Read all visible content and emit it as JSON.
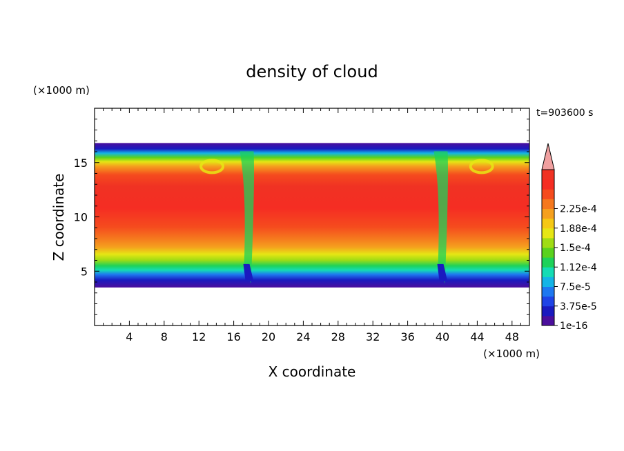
{
  "chart_data": {
    "type": "heatmap",
    "title": "density of cloud",
    "xlabel": "X coordinate",
    "ylabel": "Z coordinate",
    "x_unit": "(×1000 m)",
    "y_unit": "(×1000 m)",
    "time_label": "t=903600 s",
    "xlim": [
      0,
      50
    ],
    "ylim": [
      0,
      20
    ],
    "x_ticks": [
      4,
      8,
      12,
      16,
      20,
      24,
      28,
      32,
      36,
      40,
      44,
      48
    ],
    "y_ticks": [
      5,
      10,
      15
    ],
    "colorbar": {
      "labels": [
        "1e-16",
        "3.75e-5",
        "7.5e-5",
        "1.12e-4",
        "1.5e-4",
        "1.88e-4",
        "2.25e-4"
      ],
      "extend": "max",
      "colors": [
        "#4b0f9c",
        "#1a1abf",
        "#1f44e6",
        "#1e78f0",
        "#14b4e6",
        "#14dcb4",
        "#1ed25a",
        "#5ad21e",
        "#a0dc14",
        "#e6e614",
        "#f5c814",
        "#f5a01e",
        "#f5781e",
        "#f54b1e",
        "#f52d23",
        "#f03223"
      ],
      "over_color": "#f0a0a0"
    },
    "cloud_layer": {
      "base_z": 3.5,
      "top_z": 16.8,
      "core_value_range": [
        0.000225,
        0.00024
      ],
      "features": [
        {
          "x": 13.5,
          "description": "eddy"
        },
        {
          "x": 17.5,
          "description": "downdraft"
        },
        {
          "x": 39.8,
          "description": "downdraft"
        },
        {
          "x": 44.5,
          "description": "eddy"
        }
      ]
    }
  }
}
